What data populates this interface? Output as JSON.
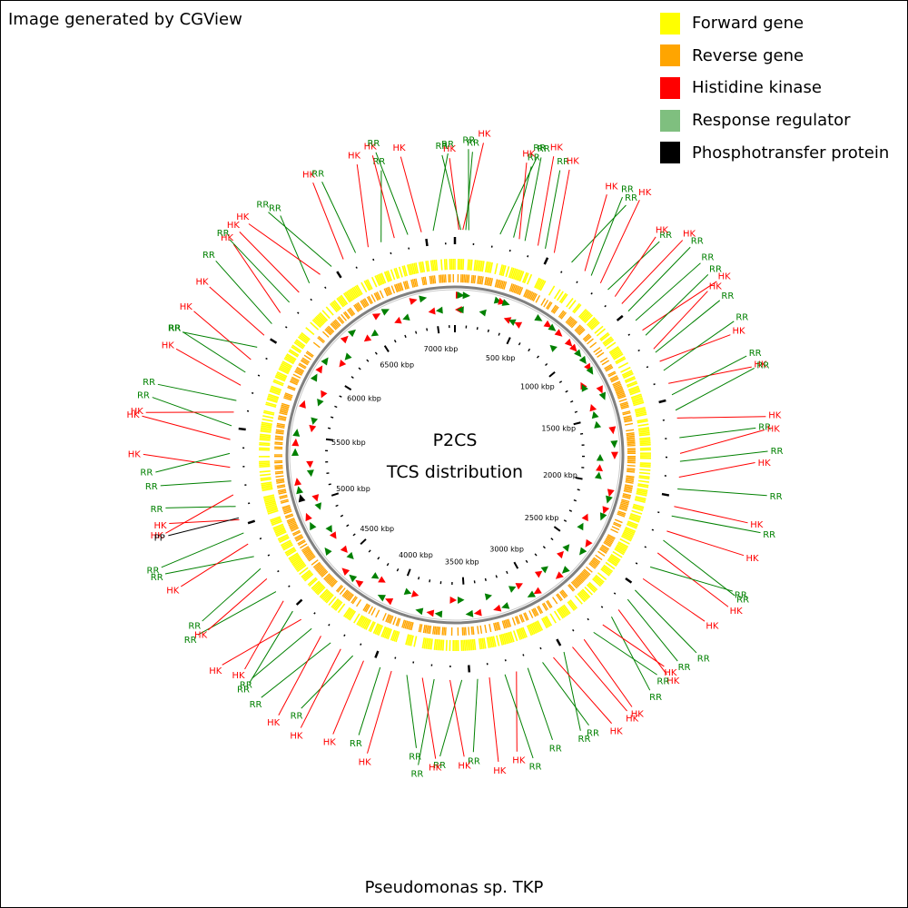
{
  "header": {
    "credit": "Image generated by CGView"
  },
  "legend": [
    {
      "label": "Forward gene",
      "color": "#ffff00"
    },
    {
      "label": "Reverse gene",
      "color": "#ffa500"
    },
    {
      "label": "Histidine kinase",
      "color": "#ff0000"
    },
    {
      "label": "Response regulator",
      "color": "#7fbf7f"
    },
    {
      "label": "Phosphotransfer protein",
      "color": "#000000"
    }
  ],
  "map": {
    "center_title": "P2CS",
    "center_subtitle": "TCS distribution",
    "organism": "Pseudomonas sp. TKP",
    "tick_labels": [
      "500 kbp",
      "1000 kbp",
      "1500 kbp",
      "2000 kbp",
      "2500 kbp",
      "3000 kbp",
      "3500 kbp",
      "4000 kbp",
      "4500 kbp",
      "5000 kbp",
      "5500 kbp",
      "6000 kbp",
      "6500 kbp",
      "7000 kbp"
    ]
  },
  "colors": {
    "forward": "#ffff00",
    "reverse": "#ffa500",
    "hk": "#ff0000",
    "rr": "#008000",
    "pp": "#000000",
    "backbone": "#808080"
  },
  "features": [
    {
      "kbp": 20,
      "type": "HK",
      "strand": "+",
      "label": "HK"
    },
    {
      "kbp": 30,
      "type": "RR",
      "strand": "+",
      "label": "RR"
    },
    {
      "kbp": 40,
      "type": "HK",
      "strand": "-",
      "label": "HK"
    },
    {
      "kbp": 55,
      "type": "RR",
      "strand": "-",
      "label": "RR"
    },
    {
      "kbp": 70,
      "type": "RR",
      "strand": "+",
      "label": "RR"
    },
    {
      "kbp": 230,
      "type": "RR",
      "strand": "-",
      "label": "RR"
    },
    {
      "kbp": 300,
      "type": "RR",
      "strand": "+",
      "label": "RR"
    },
    {
      "kbp": 330,
      "type": "HK",
      "strand": "+",
      "label": "HK"
    },
    {
      "kbp": 360,
      "type": "RR",
      "strand": "+",
      "label": "RR"
    },
    {
      "kbp": 430,
      "type": "HK",
      "strand": "-",
      "label": "HK"
    },
    {
      "kbp": 470,
      "type": "RR",
      "strand": "-",
      "label": "RR"
    },
    {
      "kbp": 520,
      "type": "HK",
      "strand": "-",
      "label": "HK"
    },
    {
      "kbp": 620,
      "type": "RR",
      "strand": "+",
      "label": "RR"
    },
    {
      "kbp": 700,
      "type": "HK",
      "strand": "+",
      "label": "HK"
    },
    {
      "kbp": 740,
      "type": "RR",
      "strand": "+",
      "label": "RR"
    },
    {
      "kbp": 800,
      "type": "HK",
      "strand": "+",
      "label": "HK"
    },
    {
      "kbp": 850,
      "type": "RR",
      "strand": "-",
      "label": "RR"
    },
    {
      "kbp": 900,
      "type": "HK",
      "strand": "+",
      "label": "HK"
    },
    {
      "kbp": 950,
      "type": "HK",
      "strand": "+",
      "label": "HK"
    },
    {
      "kbp": 1000,
      "type": "RR",
      "strand": "+",
      "label": "RR"
    },
    {
      "kbp": 1060,
      "type": "RR",
      "strand": "+",
      "label": "RR"
    },
    {
      "kbp": 1120,
      "type": "HK",
      "strand": "+",
      "label": "HK"
    },
    {
      "kbp": 1150,
      "type": "RR",
      "strand": "+",
      "label": "RR"
    },
    {
      "kbp": 1230,
      "type": "HK",
      "strand": "-",
      "label": "HK"
    },
    {
      "kbp": 1250,
      "type": "RR",
      "strand": "-",
      "label": "RR"
    },
    {
      "kbp": 1300,
      "type": "HK",
      "strand": "+",
      "label": "HK"
    },
    {
      "kbp": 1350,
      "type": "RR",
      "strand": "+",
      "label": "RR"
    },
    {
      "kbp": 1420,
      "type": "HK",
      "strand": "-",
      "label": "HK"
    },
    {
      "kbp": 1480,
      "type": "RR",
      "strand": "-",
      "label": "RR"
    },
    {
      "kbp": 1560,
      "type": "RR",
      "strand": "-",
      "label": "RR"
    },
    {
      "kbp": 1600,
      "type": "HK",
      "strand": "+",
      "label": "HK"
    },
    {
      "kbp": 1700,
      "type": "RR",
      "strand": "+",
      "label": "RR"
    },
    {
      "kbp": 1780,
      "type": "HK",
      "strand": "+",
      "label": "HK"
    },
    {
      "kbp": 1820,
      "type": "RR",
      "strand": "-",
      "label": "RR"
    },
    {
      "kbp": 1900,
      "type": "HK",
      "strand": "-",
      "label": "HK"
    },
    {
      "kbp": 1960,
      "type": "RR",
      "strand": "-",
      "label": "RR"
    },
    {
      "kbp": 2050,
      "type": "HK",
      "strand": "+",
      "label": "HK"
    },
    {
      "kbp": 2100,
      "type": "RR",
      "strand": "+",
      "label": "RR"
    },
    {
      "kbp": 2180,
      "type": "HK",
      "strand": "+",
      "label": "HK"
    },
    {
      "kbp": 2230,
      "type": "RR",
      "strand": "+",
      "label": "RR"
    },
    {
      "kbp": 2300,
      "type": "HK",
      "strand": "-",
      "label": "HK"
    },
    {
      "kbp": 2380,
      "type": "RR",
      "strand": "-",
      "label": "RR"
    },
    {
      "kbp": 2450,
      "type": "HK",
      "strand": "+",
      "label": "HK"
    },
    {
      "kbp": 2520,
      "type": "RR",
      "strand": "+",
      "label": "RR"
    },
    {
      "kbp": 2580,
      "type": "RR",
      "strand": "-",
      "label": "RR"
    },
    {
      "kbp": 2650,
      "type": "HK",
      "strand": "-",
      "label": "HK"
    },
    {
      "kbp": 2700,
      "type": "RR",
      "strand": "+",
      "label": "RR"
    },
    {
      "kbp": 2760,
      "type": "HK",
      "strand": "+",
      "label": "HK"
    },
    {
      "kbp": 2820,
      "type": "RR",
      "strand": "-",
      "label": "RR"
    },
    {
      "kbp": 2880,
      "type": "HK",
      "strand": "-",
      "label": "HK"
    },
    {
      "kbp": 2950,
      "type": "HK",
      "strand": "+",
      "label": "HK"
    },
    {
      "kbp": 3000,
      "type": "RR",
      "strand": "+",
      "label": "RR"
    },
    {
      "kbp": 3060,
      "type": "HK",
      "strand": "-",
      "label": "HK"
    },
    {
      "kbp": 3120,
      "type": "RR",
      "strand": "-",
      "label": "RR"
    },
    {
      "kbp": 3200,
      "type": "RR",
      "strand": "+",
      "label": "RR"
    },
    {
      "kbp": 3260,
      "type": "HK",
      "strand": "+",
      "label": "HK"
    },
    {
      "kbp": 3320,
      "type": "RR",
      "strand": "-",
      "label": "RR"
    },
    {
      "kbp": 3400,
      "type": "HK",
      "strand": "+",
      "label": "HK"
    },
    {
      "kbp": 3460,
      "type": "RR",
      "strand": "+",
      "label": "RR"
    },
    {
      "kbp": 3540,
      "type": "RR",
      "strand": "-",
      "label": "RR"
    },
    {
      "kbp": 3600,
      "type": "HK",
      "strand": "-",
      "label": "HK"
    },
    {
      "kbp": 3680,
      "type": "RR",
      "strand": "+",
      "label": "RR"
    },
    {
      "kbp": 3740,
      "type": "HK",
      "strand": "+",
      "label": "HK"
    },
    {
      "kbp": 3820,
      "type": "RR",
      "strand": "+",
      "label": "RR"
    },
    {
      "kbp": 3900,
      "type": "HK",
      "strand": "-",
      "label": "HK"
    },
    {
      "kbp": 3960,
      "type": "RR",
      "strand": "-",
      "label": "RR"
    },
    {
      "kbp": 4050,
      "type": "HK",
      "strand": "+",
      "label": "HK"
    },
    {
      "kbp": 4110,
      "type": "RR",
      "strand": "+",
      "label": "RR"
    },
    {
      "kbp": 4180,
      "type": "HK",
      "strand": "-",
      "label": "HK"
    },
    {
      "kbp": 4240,
      "type": "RR",
      "strand": "-",
      "label": "RR"
    },
    {
      "kbp": 4300,
      "type": "HK",
      "strand": "+",
      "label": "HK"
    },
    {
      "kbp": 4360,
      "type": "RR",
      "strand": "+",
      "label": "RR"
    },
    {
      "kbp": 4430,
      "type": "HK",
      "strand": "+",
      "label": "HK"
    },
    {
      "kbp": 4490,
      "type": "RR",
      "strand": "-",
      "label": "RR"
    },
    {
      "kbp": 4560,
      "type": "HK",
      "strand": "-",
      "label": "HK"
    },
    {
      "kbp": 4620,
      "type": "RR",
      "strand": "+",
      "label": "RR"
    },
    {
      "kbp": 4700,
      "type": "HK",
      "strand": "-",
      "label": "HK"
    },
    {
      "kbp": 4760,
      "type": "RR",
      "strand": "-",
      "label": "RR"
    },
    {
      "kbp": 4830,
      "type": "RR",
      "strand": "+",
      "label": "RR"
    },
    {
      "kbp": 4900,
      "type": "HK",
      "strand": "+",
      "label": "HK"
    },
    {
      "kbp": 4960,
      "type": "RR",
      "strand": "-",
      "label": "RR"
    },
    {
      "kbp": 5030,
      "type": "HK",
      "strand": "-",
      "label": "HK"
    },
    {
      "kbp": 5100,
      "type": "RR",
      "strand": "+",
      "label": "RR"
    },
    {
      "kbp": 5160,
      "type": "HK",
      "strand": "+",
      "label": "HK"
    },
    {
      "kbp": 5230,
      "type": "RR",
      "strand": "-",
      "label": "RR"
    },
    {
      "kbp": 5300,
      "type": "HK",
      "strand": "-",
      "label": "HK"
    },
    {
      "kbp": 5370,
      "type": "RR",
      "strand": "+",
      "label": "RR"
    },
    {
      "kbp": 5440,
      "type": "HK",
      "strand": "+",
      "label": "HK"
    },
    {
      "kbp": 5510,
      "type": "RR",
      "strand": "+",
      "label": "RR"
    },
    {
      "kbp": 5580,
      "type": "HK",
      "strand": "-",
      "label": "HK"
    },
    {
      "kbp": 5640,
      "type": "RR",
      "strand": "-",
      "label": "RR"
    },
    {
      "kbp": 5720,
      "type": "HK",
      "strand": "+",
      "label": "HK"
    },
    {
      "kbp": 5790,
      "type": "RR",
      "strand": "-",
      "label": "RR"
    },
    {
      "kbp": 5860,
      "type": "HK",
      "strand": "-",
      "label": "HK"
    },
    {
      "kbp": 5930,
      "type": "RR",
      "strand": "+",
      "label": "RR"
    },
    {
      "kbp": 6000,
      "type": "HK",
      "strand": "+",
      "label": "HK"
    },
    {
      "kbp": 6070,
      "type": "RR",
      "strand": "+",
      "label": "RR"
    },
    {
      "kbp": 6140,
      "type": "HK",
      "strand": "-",
      "label": "HK"
    },
    {
      "kbp": 6210,
      "type": "RR",
      "strand": "-",
      "label": "RR"
    },
    {
      "kbp": 6280,
      "type": "HK",
      "strand": "+",
      "label": "HK"
    },
    {
      "kbp": 6350,
      "type": "RR",
      "strand": "+",
      "label": "RR"
    },
    {
      "kbp": 6420,
      "type": "HK",
      "strand": "-",
      "label": "HK"
    },
    {
      "kbp": 6490,
      "type": "RR",
      "strand": "-",
      "label": "RR"
    },
    {
      "kbp": 6560,
      "type": "HK",
      "strand": "+",
      "label": "HK"
    },
    {
      "kbp": 6630,
      "type": "RR",
      "strand": "+",
      "label": "RR"
    },
    {
      "kbp": 6700,
      "type": "HK",
      "strand": "-",
      "label": "HK"
    },
    {
      "kbp": 6770,
      "type": "RR",
      "strand": "-",
      "label": "RR"
    },
    {
      "kbp": 6840,
      "type": "HK",
      "strand": "+",
      "label": "HK"
    },
    {
      "kbp": 6910,
      "type": "RR",
      "strand": "+",
      "label": "RR"
    },
    {
      "kbp": 6980,
      "type": "HK",
      "strand": "-",
      "label": "HK"
    },
    {
      "kbp": 7040,
      "type": "RR",
      "strand": "-",
      "label": "RR"
    },
    {
      "kbp": 5040,
      "type": "PP",
      "strand": "+",
      "label": "PP"
    }
  ]
}
